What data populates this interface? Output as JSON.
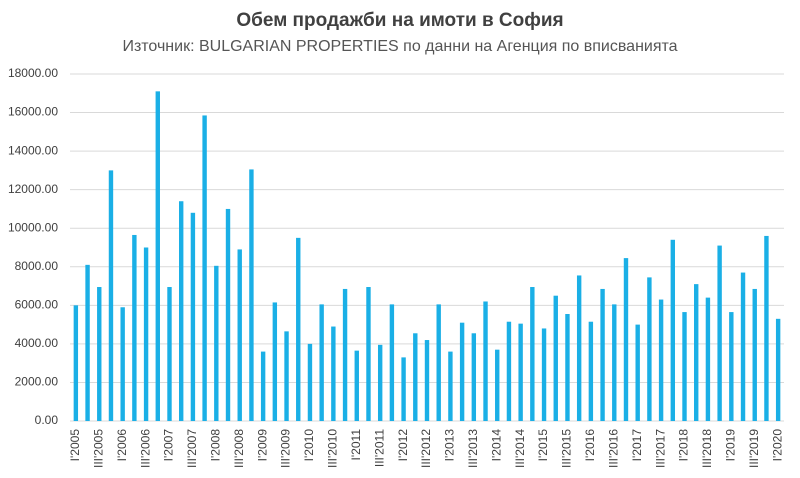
{
  "chart_data": {
    "type": "bar",
    "title": "Обем продажби на имоти в София",
    "subtitle": "Източник: BULGARIAN PROPERTIES по данни на Агенция по вписванията",
    "categories": [
      "I'2005",
      null,
      "III'2005",
      null,
      "I'2006",
      null,
      "III'2006",
      null,
      "I'2007",
      null,
      "III'2007",
      null,
      "I'2008",
      null,
      "III'2008",
      null,
      "I'2009",
      null,
      "III'2009",
      null,
      "I'2010",
      null,
      "III'2010",
      null,
      "I'2011",
      null,
      "III'2011",
      null,
      "I'2012",
      null,
      "III'2012",
      null,
      "I'2013",
      null,
      "III'2013",
      null,
      "I'2014",
      null,
      "III'2014",
      null,
      "I'2015",
      null,
      "III'2015",
      null,
      "I'2016",
      null,
      "III'2016",
      null,
      "I'2017",
      null,
      "III'2017",
      null,
      "I'2018",
      null,
      "III'2018",
      null,
      "I'2019",
      null,
      "III'2019",
      null,
      "I'2020"
    ],
    "values": [
      6000,
      8100,
      6950,
      13000,
      5900,
      9650,
      9000,
      17100,
      6950,
      11400,
      10800,
      15850,
      8050,
      11000,
      8900,
      13050,
      3600,
      6150,
      4650,
      9500,
      4000,
      6050,
      4900,
      6850,
      3650,
      6950,
      3950,
      6050,
      3300,
      4550,
      4200,
      6050,
      3600,
      5100,
      4550,
      6200,
      3700,
      5150,
      5050,
      6950,
      4800,
      6500,
      5550,
      7550,
      5150,
      6850,
      6050,
      8450,
      5000,
      7450,
      6300,
      9400,
      5650,
      7100,
      6400,
      9100,
      5650,
      7700,
      6850,
      9600,
      5300
    ],
    "color": "#1aafe6",
    "ylim": [
      0,
      18000
    ],
    "yticks": [
      {
        "value": 0,
        "label": "0.00"
      },
      {
        "value": 2000,
        "label": "2000.00"
      },
      {
        "value": 4000,
        "label": "4000.00"
      },
      {
        "value": 6000,
        "label": "6000.00"
      },
      {
        "value": 8000,
        "label": "8000.00"
      },
      {
        "value": 10000,
        "label": "10000.00"
      },
      {
        "value": 12000,
        "label": "12000.00"
      },
      {
        "value": 14000,
        "label": "14000.00"
      },
      {
        "value": 16000,
        "label": "16000.00"
      },
      {
        "value": 18000,
        "label": "18000.00"
      }
    ],
    "grid": true
  }
}
